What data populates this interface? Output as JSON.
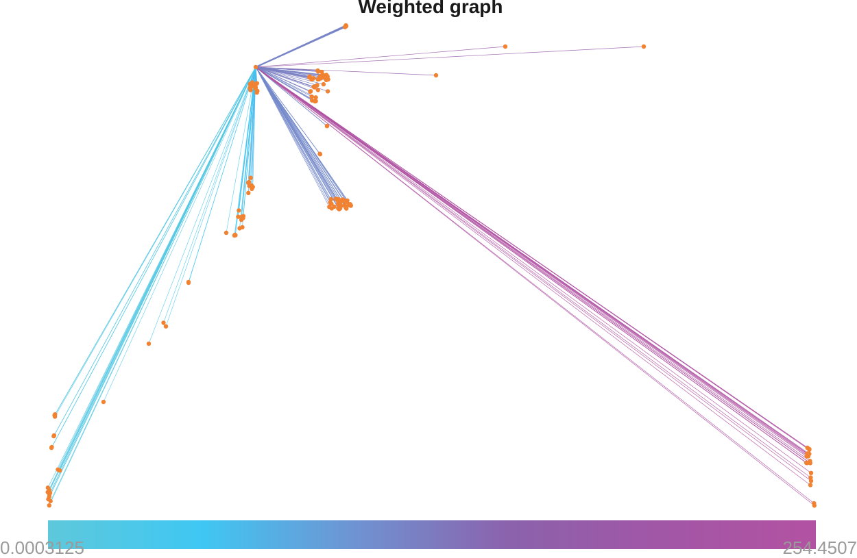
{
  "title": "Weighted graph",
  "colorbar": {
    "min_label": "0.0003125",
    "max_label": "254.4507",
    "min_value": 0.0003125,
    "max_value": 254.4507,
    "stops": [
      "#5ec8db",
      "#3fc7f3",
      "#6f93d2",
      "#8b62ac",
      "#a256a6",
      "#b352a2"
    ]
  },
  "colors": {
    "node": "#f08232",
    "background": "#ffffff"
  }
}
